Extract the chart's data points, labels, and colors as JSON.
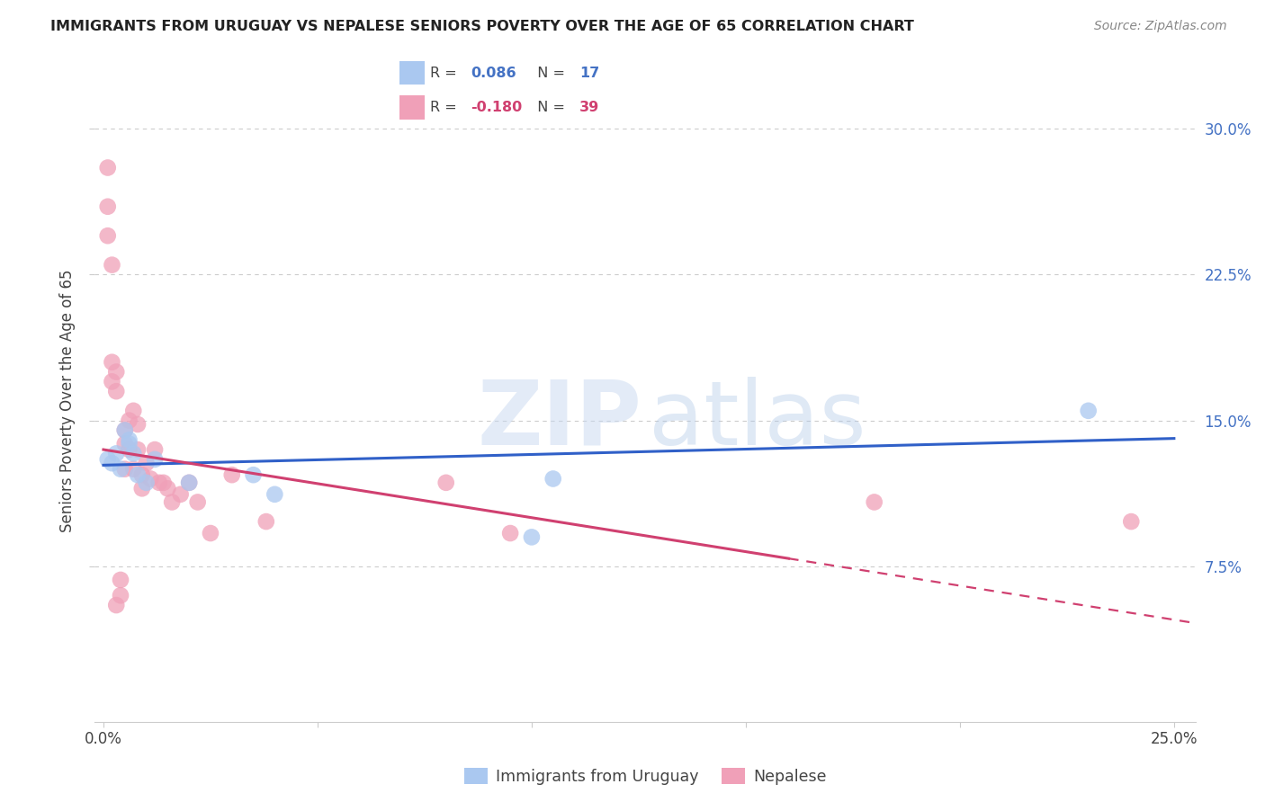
{
  "title": "IMMIGRANTS FROM URUGUAY VS NEPALESE SENIORS POVERTY OVER THE AGE OF 65 CORRELATION CHART",
  "source": "Source: ZipAtlas.com",
  "ylabel": "Seniors Poverty Over the Age of 65",
  "xlim": [
    -0.002,
    0.255
  ],
  "ylim": [
    -0.005,
    0.325
  ],
  "ytick_vals": [
    0.075,
    0.15,
    0.225,
    0.3
  ],
  "ytick_labels": [
    "7.5%",
    "15.0%",
    "22.5%",
    "30.0%"
  ],
  "xtick_vals": [
    0.0,
    0.05,
    0.1,
    0.15,
    0.2,
    0.25
  ],
  "xtick_labels": [
    "0.0%",
    "",
    "",
    "",
    "",
    "25.0%"
  ],
  "uruguay_R": 0.086,
  "uruguay_N": 17,
  "nepalese_R": -0.18,
  "nepalese_N": 39,
  "uruguay_scatter_color": "#aac8f0",
  "nepalese_scatter_color": "#f0a0b8",
  "uruguay_line_color": "#3060c8",
  "nepalese_line_color": "#d04070",
  "bg_color": "#ffffff",
  "grid_color": "#cccccc",
  "title_color": "#222222",
  "source_color": "#888888",
  "right_tick_color": "#4472c4",
  "uruguay_x": [
    0.001,
    0.002,
    0.003,
    0.004,
    0.005,
    0.006,
    0.006,
    0.007,
    0.008,
    0.01,
    0.012,
    0.02,
    0.035,
    0.04,
    0.1,
    0.105,
    0.23
  ],
  "uruguay_y": [
    0.13,
    0.128,
    0.133,
    0.125,
    0.145,
    0.14,
    0.138,
    0.133,
    0.122,
    0.118,
    0.13,
    0.118,
    0.122,
    0.112,
    0.09,
    0.12,
    0.155
  ],
  "nepalese_x": [
    0.001,
    0.001,
    0.001,
    0.002,
    0.002,
    0.002,
    0.003,
    0.003,
    0.003,
    0.004,
    0.004,
    0.005,
    0.005,
    0.005,
    0.006,
    0.006,
    0.007,
    0.007,
    0.008,
    0.008,
    0.009,
    0.009,
    0.01,
    0.011,
    0.012,
    0.013,
    0.014,
    0.015,
    0.016,
    0.018,
    0.02,
    0.022,
    0.025,
    0.03,
    0.038,
    0.08,
    0.095,
    0.18,
    0.24
  ],
  "nepalese_y": [
    0.28,
    0.26,
    0.245,
    0.23,
    0.18,
    0.17,
    0.175,
    0.165,
    0.055,
    0.06,
    0.068,
    0.145,
    0.138,
    0.125,
    0.15,
    0.135,
    0.155,
    0.125,
    0.148,
    0.135,
    0.122,
    0.115,
    0.128,
    0.12,
    0.135,
    0.118,
    0.118,
    0.115,
    0.108,
    0.112,
    0.118,
    0.108,
    0.092,
    0.122,
    0.098,
    0.118,
    0.092,
    0.108,
    0.098
  ],
  "legend_label1": "Immigrants from Uruguay",
  "legend_label2": "Nepalese"
}
